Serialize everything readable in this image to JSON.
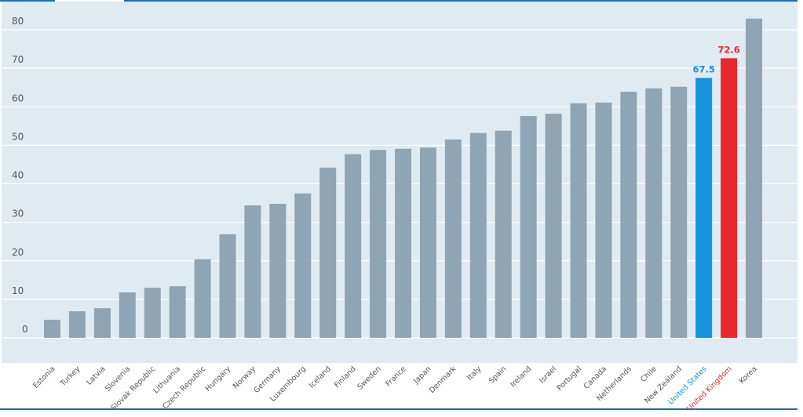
{
  "chart_data": {
    "type": "bar",
    "title": "",
    "xlabel": "",
    "ylabel": "",
    "ylim": [
      0,
      80
    ],
    "yticks": [
      0,
      10,
      20,
      30,
      40,
      50,
      60,
      70,
      80
    ],
    "grid": true,
    "categories": [
      "Estonia",
      "Turkey",
      "Latvia",
      "Slovenia",
      "Slovak Republic",
      "Lithuania",
      "Czech Republic",
      "Hungary",
      "Norway",
      "Germany",
      "Luxembourg",
      "Iceland",
      "Finland",
      "Sweden",
      "France",
      "Japan",
      "Denmark",
      "Italy",
      "Spain",
      "Ireland",
      "Israel",
      "Portugal",
      "Canada",
      "Netherlands",
      "Chile",
      "New Zealand",
      "United States",
      "United Kingdom",
      "Korea"
    ],
    "values": [
      4.7,
      6.9,
      7.7,
      11.8,
      13.0,
      13.4,
      20.4,
      26.9,
      34.4,
      34.8,
      37.5,
      44.2,
      47.7,
      48.8,
      49.1,
      49.4,
      51.5,
      53.2,
      53.8,
      57.6,
      58.2,
      60.9,
      61.1,
      63.9,
      64.8,
      65.2,
      67.5,
      72.6,
      82.9
    ],
    "highlights": [
      {
        "category": "United States",
        "color": "#1592db",
        "label": "67.5"
      },
      {
        "category": "United Kingdom",
        "color": "#e8282f",
        "label": "72.6"
      }
    ],
    "colors": {
      "bar": "#8fa5b4",
      "plot_background": "#e0eaf1",
      "grid": "#ffffff",
      "frame": "#1a6fb5",
      "axis_text": "#555555"
    }
  }
}
